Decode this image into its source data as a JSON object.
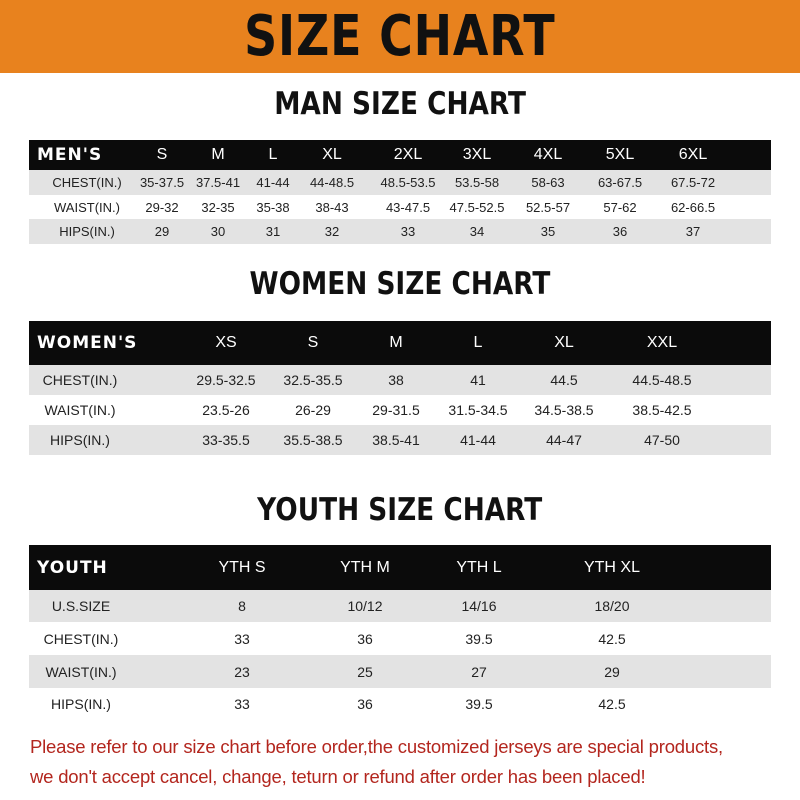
{
  "title": "SIZE CHART",
  "colors": {
    "banner": "#e8821e",
    "header_row": "#0b0b0b",
    "note": "#b3261e"
  },
  "men": {
    "heading": "MAN SIZE CHART",
    "header_label": "MEN'S",
    "sizes": [
      "S",
      "M",
      "L",
      "XL",
      "2XL",
      "3XL",
      "4XL",
      "5XL",
      "6XL"
    ],
    "rows": [
      {
        "label": "CHEST(IN.)",
        "values": [
          "35-37.5",
          "37.5-41",
          "41-44",
          "44-48.5",
          "48.5-53.5",
          "53.5-58",
          "58-63",
          "63-67.5",
          "67.5-72"
        ]
      },
      {
        "label": "WAIST(IN.)",
        "values": [
          "29-32",
          "32-35",
          "35-38",
          "38-43",
          "43-47.5",
          "47.5-52.5",
          "52.5-57",
          "57-62",
          "62-66.5"
        ]
      },
      {
        "label": "HIPS(IN.)",
        "values": [
          "29",
          "30",
          "31",
          "32",
          "33",
          "34",
          "35",
          "36",
          "37"
        ]
      }
    ]
  },
  "women": {
    "heading": "WOMEN SIZE CHART",
    "header_label": "WOMEN'S",
    "sizes": [
      "XS",
      "S",
      "M",
      "L",
      "XL",
      "XXL"
    ],
    "rows": [
      {
        "label": "CHEST(IN.)",
        "values": [
          "29.5-32.5",
          "32.5-35.5",
          "38",
          "41",
          "44.5",
          "44.5-48.5"
        ]
      },
      {
        "label": "WAIST(IN.)",
        "values": [
          "23.5-26",
          "26-29",
          "29-31.5",
          "31.5-34.5",
          "34.5-38.5",
          "38.5-42.5"
        ]
      },
      {
        "label": "HIPS(IN.)",
        "values": [
          "33-35.5",
          "35.5-38.5",
          "38.5-41",
          "41-44",
          "44-47",
          "47-50"
        ]
      }
    ]
  },
  "youth": {
    "heading": "YOUTH SIZE CHART",
    "header_label": "YOUTH",
    "sizes": [
      "YTH S",
      "YTH M",
      "YTH L",
      "YTH XL"
    ],
    "rows": [
      {
        "label": "U.S.SIZE",
        "values": [
          "8",
          "10/12",
          "14/16",
          "18/20"
        ]
      },
      {
        "label": "CHEST(IN.)",
        "values": [
          "33",
          "36",
          "39.5",
          "42.5"
        ]
      },
      {
        "label": "WAIST(IN.)",
        "values": [
          "23",
          "25",
          "27",
          "29"
        ]
      },
      {
        "label": "HIPS(IN.)",
        "values": [
          "33",
          "36",
          "39.5",
          "42.5"
        ]
      }
    ]
  },
  "note": {
    "line1": "Please refer to our size chart before order,the customized jerseys are special products,",
    "line2": "we don't accept cancel, change, teturn or refund after order has been placed!"
  }
}
